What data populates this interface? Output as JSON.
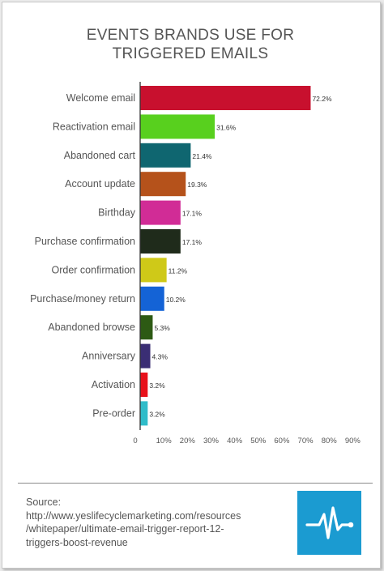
{
  "title_lines": [
    "EVENTS BRANDS USE FOR",
    "TRIGGERED EMAILS"
  ],
  "source": {
    "label": "Source:",
    "url_lines": [
      "http://www.yeslifecyclemarketing.com/resources",
      "/whitepaper/ultimate-email-trigger-report-12-",
      "triggers-boost-revenue"
    ]
  },
  "logo_icon": "pulse-line-icon",
  "chart_data": {
    "type": "bar",
    "orientation": "horizontal",
    "categories": [
      "Welcome email",
      "Reactivation email",
      "Abandoned cart",
      "Account update",
      "Birthday",
      "Purchase confirmation",
      "Order confirmation",
      "Purchase/money return",
      "Abandoned browse",
      "Anniversary",
      "Activation",
      "Pre-order"
    ],
    "values": [
      72.2,
      31.6,
      21.4,
      19.3,
      17.1,
      17.1,
      11.2,
      10.2,
      5.3,
      4.3,
      3.2,
      3.2
    ],
    "data_labels": [
      "72.2%",
      "31.6%",
      "21.4%",
      "19.3%",
      "17.1%",
      "17.1%",
      "11.2%",
      "10.2%",
      "5.3%",
      "4.3%",
      "3.2%",
      "3.2%"
    ],
    "colors": [
      "#c8102e",
      "#58d01e",
      "#0f6670",
      "#b5521b",
      "#d12c96",
      "#1f2b1b",
      "#cfc918",
      "#1463d6",
      "#2d5a14",
      "#3a2e74",
      "#e8111a",
      "#2fbcc9"
    ],
    "x_ticks": [
      "0",
      "10%",
      "20%",
      "30%",
      "40%",
      "50%",
      "60%",
      "70%",
      "80%",
      "90%"
    ],
    "xlim": [
      0,
      90
    ],
    "grid": false,
    "legend": "none"
  }
}
